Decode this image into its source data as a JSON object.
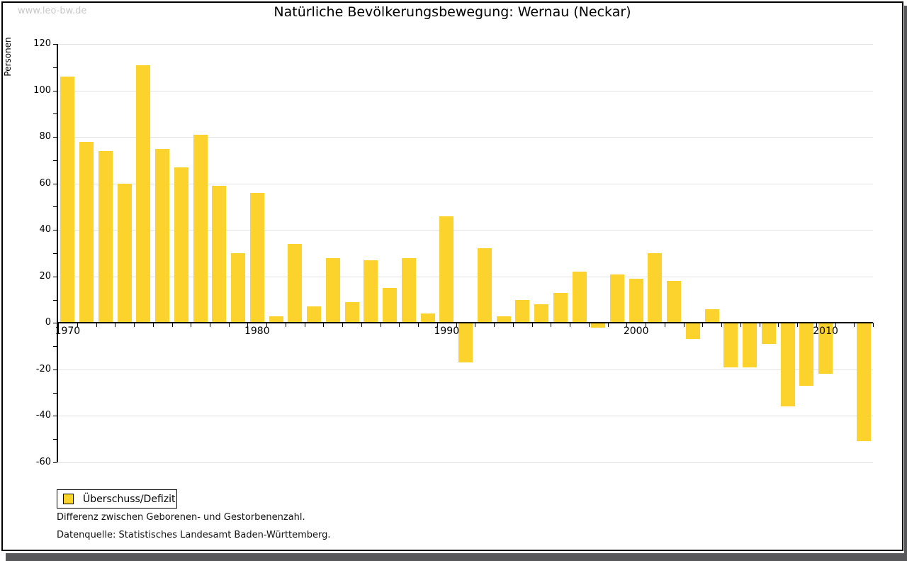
{
  "page": {
    "watermark": "www.leo-bw.de",
    "title": "Natürliche Bevölkerungsbewegung: Wernau (Neckar)",
    "caption_line1": "Differenz zwischen Geborenen- und Gestorbenenzahl.",
    "caption_line2": "Datenquelle: Statistisches Landesamt Baden-Württemberg."
  },
  "legend": {
    "label": "Überschuss/Defizit"
  },
  "colors": {
    "bar": "#FCD32D",
    "grid": "#E2E2E2",
    "axis": "#000000",
    "watermark": "#C8C8C8",
    "shadow": "#58585A"
  },
  "chart_data": {
    "type": "bar",
    "title": "Natürliche Bevölkerungsbewegung: Wernau (Neckar)",
    "series_name": "Überschuss/Defizit",
    "xlabel": "",
    "ylabel": "Personen",
    "ylim": [
      -60,
      120
    ],
    "grid": true,
    "legend_position": "bottom-left",
    "years": [
      1970,
      1971,
      1972,
      1973,
      1974,
      1975,
      1976,
      1977,
      1978,
      1979,
      1980,
      1981,
      1982,
      1983,
      1984,
      1985,
      1986,
      1987,
      1988,
      1989,
      1990,
      1991,
      1992,
      1993,
      1994,
      1995,
      1996,
      1997,
      1998,
      1999,
      2000,
      2001,
      2002,
      2003,
      2004,
      2005,
      2006,
      2007,
      2008,
      2009,
      2010,
      2011,
      2012
    ],
    "values": [
      106,
      78,
      74,
      60,
      111,
      75,
      67,
      81,
      59,
      30,
      56,
      3,
      34,
      7,
      28,
      9,
      27,
      15,
      28,
      4,
      46,
      -17,
      32,
      3,
      10,
      8,
      13,
      22,
      -2,
      21,
      19,
      30,
      18,
      -7,
      6,
      -19,
      -19,
      -9,
      -36,
      -27,
      -22,
      0,
      -51
    ],
    "y_ticks_labeled": [
      120,
      100,
      80,
      60,
      40,
      20,
      0,
      -20,
      -40,
      -60
    ],
    "y_tick_minor_step": 10,
    "x_tick_labels": [
      "1970",
      "1980",
      "1990",
      "2000",
      "2010"
    ]
  }
}
